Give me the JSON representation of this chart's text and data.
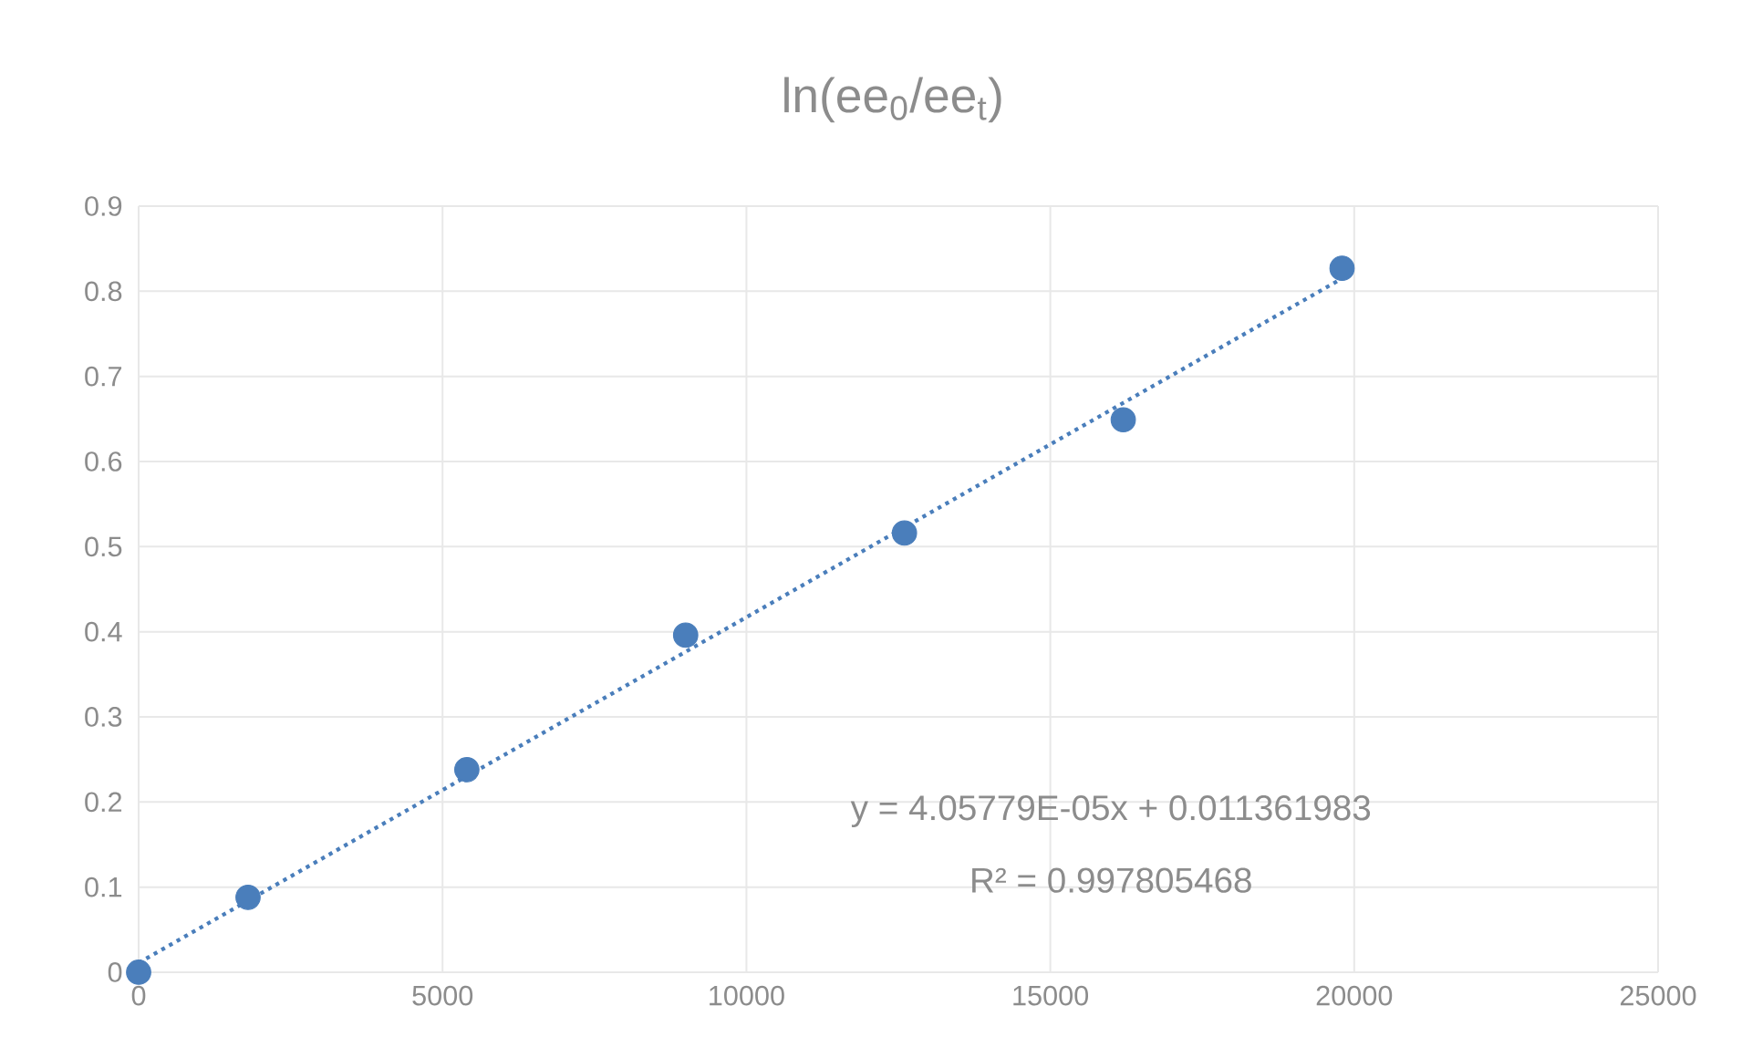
{
  "chart_data": {
    "type": "scatter",
    "title": "ln(ee$_{0}$/ee$_{t}$)",
    "series": [
      {
        "type": "scatter",
        "color": "#4a7ebb",
        "marker": "circle",
        "x": [
          0,
          1800,
          5400,
          9000,
          12600,
          16200,
          19800
        ],
        "values": [
          0,
          0.088,
          0.238,
          0.396,
          0.516,
          0.649,
          0.827
        ]
      },
      {
        "type": "line",
        "color": "#4a7ebb",
        "marker": "none",
        "line_style": "dotted",
        "x": [
          0,
          19800
        ],
        "values": [
          0.011,
          0.815
        ]
      }
    ],
    "xlim": [
      0,
      25000
    ],
    "ylim": [
      0,
      0.9
    ],
    "xticks": [
      0,
      5000,
      10000,
      15000,
      20000,
      25000
    ],
    "yticks": [
      0,
      0.1,
      0.2,
      0.3,
      0.4,
      0.5,
      0.6,
      0.7,
      0.8,
      0.9
    ],
    "grid": true,
    "annotations": [
      "y = 4.05779E-05x + 0.011361983",
      "R² = 0.997805468"
    ]
  }
}
